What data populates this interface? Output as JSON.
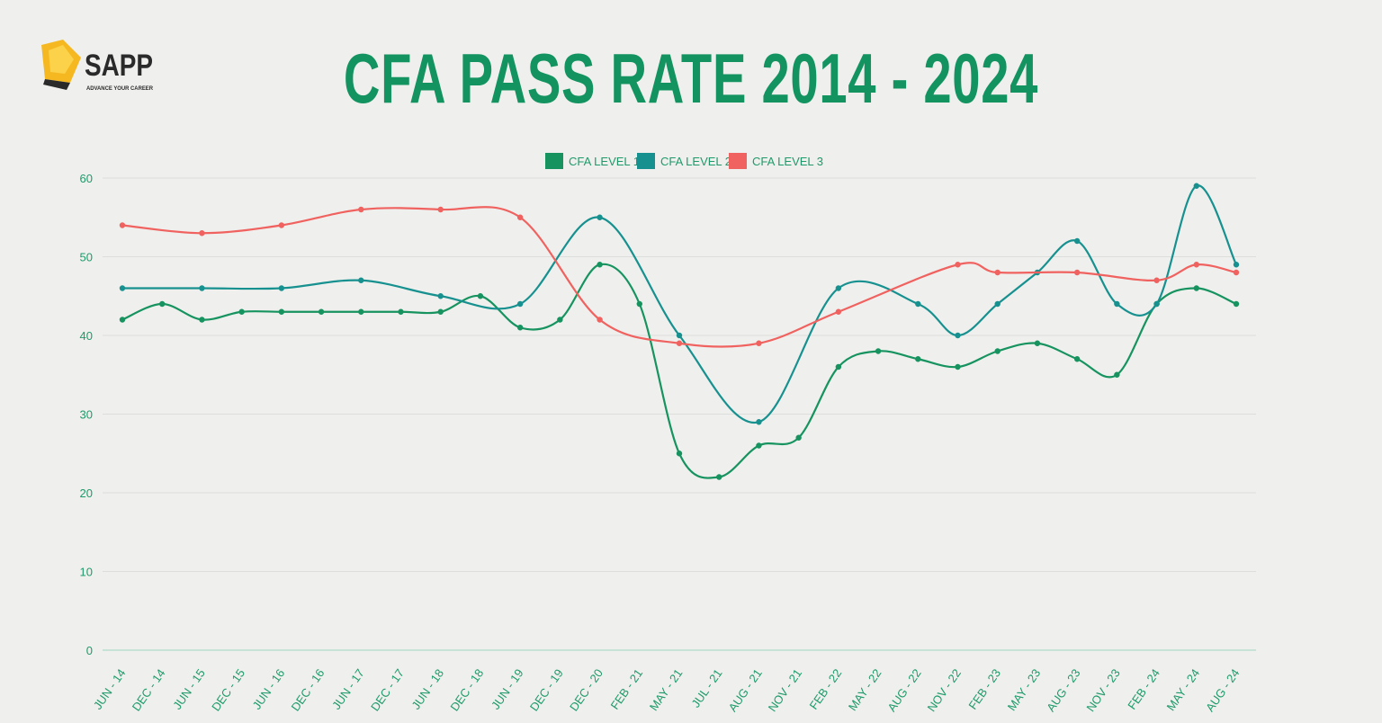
{
  "header": {
    "title": "CFA PASS RATE 2014 - 2024"
  },
  "logo": {
    "name": "SAPP",
    "tagline": "ADVANCE YOUR CAREER"
  },
  "colors": {
    "level1": "#16935f",
    "level2": "#17918f",
    "level3": "#f0625f",
    "title": "#13935f",
    "background": "#eff0ee"
  },
  "chart_data": {
    "type": "line",
    "title": "CFA PASS RATE 2014 - 2024",
    "legend_position": "top",
    "grid": true,
    "smooth": true,
    "ylim": [
      0,
      60
    ],
    "yticks": [
      0,
      10,
      20,
      30,
      40,
      50,
      60
    ],
    "categories": [
      "JUN - 14",
      "DEC - 14",
      "JUN - 15",
      "DEC - 15",
      "JUN - 16",
      "DEC - 16",
      "JUN - 17",
      "DEC - 17",
      "JUN - 18",
      "DEC - 18",
      "JUN - 19",
      "DEC - 19",
      "DEC - 20",
      "FEB - 21",
      "MAY - 21",
      "JUL - 21",
      "AUG - 21",
      "NOV - 21",
      "FEB - 22",
      "MAY - 22",
      "AUG - 22",
      "NOV - 22",
      "FEB - 23",
      "MAY - 23",
      "AUG - 23",
      "NOV - 23",
      "FEB - 24",
      "MAY - 24",
      "AUG - 24"
    ],
    "series": [
      {
        "name": "CFA LEVEL 1",
        "color": "#16935f",
        "values": [
          42,
          44,
          42,
          43,
          43,
          43,
          43,
          43,
          43,
          45,
          41,
          42,
          49,
          44,
          25,
          22,
          26,
          27,
          36,
          38,
          37,
          36,
          38,
          39,
          37,
          35,
          44,
          46,
          44
        ]
      },
      {
        "name": "CFA LEVEL 2",
        "color": "#17918f",
        "values": [
          46,
          null,
          46,
          null,
          46,
          null,
          47,
          null,
          45,
          null,
          44,
          null,
          55,
          null,
          40,
          null,
          29,
          null,
          46,
          null,
          44,
          40,
          44,
          48,
          52,
          44,
          44,
          59,
          49
        ]
      },
      {
        "name": "CFA LEVEL 3",
        "color": "#f0625f",
        "values": [
          54,
          null,
          53,
          null,
          54,
          null,
          56,
          null,
          56,
          null,
          55,
          null,
          42,
          null,
          39,
          null,
          39,
          null,
          43,
          null,
          null,
          49,
          48,
          null,
          48,
          null,
          47,
          49,
          48
        ]
      }
    ]
  }
}
